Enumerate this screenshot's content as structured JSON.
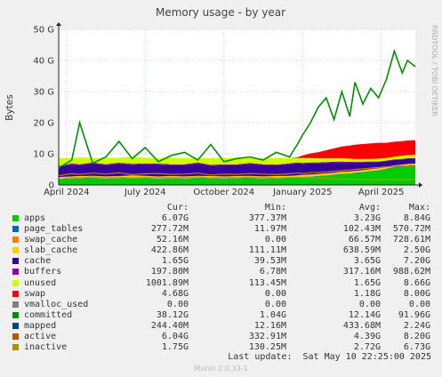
{
  "chart_data": {
    "type": "area",
    "title": "Memory usage - by year",
    "ylabel": "Bytes",
    "side_label": "RRDTOOL / TOBI OETIKER",
    "ylim": [
      0,
      50
    ],
    "y_unit": "G",
    "y_ticks": [
      {
        "v": 0,
        "label": "0"
      },
      {
        "v": 10,
        "label": "10 G"
      },
      {
        "v": 20,
        "label": "20 G"
      },
      {
        "v": 30,
        "label": "30 G"
      },
      {
        "v": 40,
        "label": "40 G"
      },
      {
        "v": 50,
        "label": "50 G"
      }
    ],
    "x_ticks": [
      {
        "t": 0,
        "label": "April 2024"
      },
      {
        "t": 3,
        "label": "July 2024"
      },
      {
        "t": 6,
        "label": "October 2024"
      },
      {
        "t": 9,
        "label": "January 2025"
      },
      {
        "t": 12,
        "label": "April 2025"
      }
    ],
    "xlim": [
      -0.3,
      13.3
    ],
    "grid": true,
    "x": [
      -0.3,
      0.2,
      0.5,
      1.0,
      1.5,
      2.0,
      2.5,
      3.0,
      3.5,
      4.0,
      4.5,
      5.0,
      5.5,
      6.0,
      6.5,
      7.0,
      7.5,
      8.0,
      8.5,
      8.8,
      9.0,
      9.3,
      9.6,
      9.9,
      10.2,
      10.5,
      10.8,
      11.0,
      11.3,
      11.6,
      11.9,
      12.2,
      12.5,
      12.8,
      13.0,
      13.3
    ],
    "stack": [
      {
        "name": "apps",
        "color": "#00cc00",
        "values": [
          1.8,
          2.0,
          2.1,
          2.2,
          2.0,
          2.1,
          2.3,
          2.2,
          2.0,
          2.1,
          2.0,
          2.2,
          2.1,
          2.0,
          2.1,
          2.2,
          2.0,
          2.1,
          2.2,
          2.3,
          2.5,
          2.6,
          2.8,
          3.0,
          3.2,
          3.5,
          3.6,
          3.8,
          4.0,
          4.3,
          4.5,
          5.0,
          5.5,
          5.8,
          6.0,
          6.1
        ]
      },
      {
        "name": "page_tables",
        "color": "#0066b3",
        "values": [
          0.1,
          0.1,
          0.1,
          0.1,
          0.1,
          0.1,
          0.1,
          0.1,
          0.1,
          0.1,
          0.1,
          0.1,
          0.1,
          0.1,
          0.1,
          0.1,
          0.1,
          0.1,
          0.1,
          0.1,
          0.1,
          0.1,
          0.1,
          0.1,
          0.1,
          0.1,
          0.1,
          0.1,
          0.15,
          0.15,
          0.2,
          0.2,
          0.25,
          0.25,
          0.27,
          0.28
        ]
      },
      {
        "name": "swap_cache",
        "color": "#ff8000",
        "values": [
          0.05,
          0.05,
          0.05,
          0.05,
          0.05,
          0.05,
          0.05,
          0.05,
          0.05,
          0.05,
          0.05,
          0.05,
          0.05,
          0.05,
          0.05,
          0.05,
          0.05,
          0.05,
          0.05,
          0.05,
          0.05,
          0.05,
          0.05,
          0.05,
          0.05,
          0.05,
          0.05,
          0.05,
          0.05,
          0.05,
          0.05,
          0.05,
          0.05,
          0.05,
          0.05,
          0.05
        ]
      },
      {
        "name": "slab_cache",
        "color": "#ffcc00",
        "values": [
          0.6,
          0.6,
          0.6,
          0.6,
          0.6,
          0.6,
          0.6,
          0.6,
          0.6,
          0.6,
          0.6,
          0.6,
          0.6,
          0.6,
          0.6,
          0.6,
          0.6,
          0.6,
          0.6,
          0.6,
          0.6,
          0.6,
          0.6,
          0.6,
          0.6,
          0.6,
          0.6,
          0.6,
          0.6,
          0.6,
          0.6,
          0.6,
          0.5,
          0.45,
          0.43,
          0.42
        ]
      },
      {
        "name": "cache",
        "color": "#330099",
        "values": [
          3.2,
          3.8,
          3.5,
          3.9,
          3.6,
          4.0,
          3.4,
          3.7,
          3.8,
          3.5,
          3.6,
          3.9,
          3.3,
          3.6,
          3.5,
          3.8,
          3.6,
          3.4,
          3.7,
          3.9,
          3.5,
          3.6,
          3.4,
          3.3,
          3.2,
          3.0,
          2.8,
          2.6,
          2.4,
          2.2,
          2.0,
          1.8,
          1.7,
          1.6,
          1.65,
          1.65
        ]
      },
      {
        "name": "buffers",
        "color": "#990099",
        "values": [
          0.3,
          0.35,
          0.3,
          0.35,
          0.3,
          0.3,
          0.35,
          0.3,
          0.3,
          0.3,
          0.3,
          0.35,
          0.3,
          0.3,
          0.3,
          0.35,
          0.3,
          0.3,
          0.3,
          0.3,
          0.3,
          0.3,
          0.3,
          0.3,
          0.3,
          0.3,
          0.3,
          0.25,
          0.25,
          0.25,
          0.2,
          0.2,
          0.2,
          0.2,
          0.2,
          0.2
        ]
      },
      {
        "name": "unused",
        "color": "#ccff00",
        "values": [
          2.5,
          1.8,
          2.2,
          1.5,
          2.0,
          1.6,
          2.3,
          1.8,
          1.7,
          2.1,
          2.0,
          1.4,
          2.2,
          2.0,
          2.1,
          1.5,
          1.9,
          2.2,
          1.7,
          1.4,
          1.6,
          1.4,
          1.3,
          1.2,
          1.1,
          1.0,
          1.0,
          0.9,
          0.9,
          0.8,
          0.9,
          0.8,
          0.9,
          1.0,
          1.0,
          1.0
        ]
      },
      {
        "name": "swap",
        "color": "#ff0000",
        "values": [
          0.0,
          0.0,
          0.0,
          0.0,
          0.0,
          0.0,
          0.0,
          0.0,
          0.0,
          0.0,
          0.0,
          0.0,
          0.0,
          0.0,
          0.0,
          0.0,
          0.0,
          0.0,
          0.0,
          0.2,
          0.8,
          1.5,
          2.0,
          2.6,
          3.2,
          3.8,
          4.2,
          4.6,
          4.8,
          5.0,
          5.1,
          4.9,
          4.8,
          4.7,
          4.7,
          4.7
        ]
      }
    ],
    "lines": [
      {
        "name": "committed",
        "color": "#008f00",
        "width": 1.6,
        "values": [
          5.5,
          8.0,
          20.0,
          7.0,
          9.0,
          14.0,
          8.5,
          12.0,
          7.5,
          9.5,
          10.5,
          8.0,
          13.0,
          7.5,
          8.5,
          9.0,
          8.0,
          10.5,
          9.0,
          13.0,
          16.0,
          20.0,
          25.0,
          28.0,
          21.0,
          30.0,
          22.0,
          33.0,
          26.0,
          31.0,
          28.0,
          34.0,
          43.0,
          36.0,
          40.0,
          38.0
        ]
      },
      {
        "name": "active",
        "color": "#cc7a00",
        "width": 1.2,
        "values": [
          3.0,
          3.6,
          3.4,
          3.8,
          3.5,
          3.9,
          3.3,
          3.6,
          3.7,
          3.4,
          3.5,
          3.8,
          3.2,
          3.5,
          3.4,
          3.7,
          3.5,
          3.3,
          3.6,
          3.8,
          3.7,
          3.9,
          4.0,
          4.2,
          4.4,
          4.6,
          4.8,
          5.0,
          5.2,
          5.4,
          5.6,
          5.8,
          6.0,
          6.1,
          6.0,
          6.0
        ]
      },
      {
        "name": "inactive",
        "color": "#b8a000",
        "width": 1.0,
        "values": [
          1.8,
          2.4,
          2.2,
          2.6,
          2.3,
          2.5,
          2.2,
          2.4,
          2.5,
          2.3,
          2.4,
          2.6,
          2.2,
          2.4,
          2.3,
          2.5,
          2.4,
          2.2,
          2.4,
          2.5,
          2.4,
          2.3,
          2.2,
          2.1,
          2.0,
          1.9,
          1.9,
          1.8,
          1.8,
          1.8,
          1.7,
          1.8,
          1.8,
          1.7,
          1.75,
          1.75
        ]
      }
    ],
    "legend": {
      "headers": {
        "cur": "Cur:",
        "min": "Min:",
        "avg": "Avg:",
        "max": "Max:"
      },
      "rows": [
        {
          "name": "apps",
          "color": "#00cc00",
          "cur": "6.07G",
          "min": "377.37M",
          "avg": "3.23G",
          "max": "8.84G"
        },
        {
          "name": "page_tables",
          "color": "#0066b3",
          "cur": "277.72M",
          "min": "11.97M",
          "avg": "102.43M",
          "max": "570.72M"
        },
        {
          "name": "swap_cache",
          "color": "#ff8000",
          "cur": "52.16M",
          "min": "0.00",
          "avg": "66.57M",
          "max": "728.61M"
        },
        {
          "name": "slab_cache",
          "color": "#ffcc00",
          "cur": "422.86M",
          "min": "111.11M",
          "avg": "638.59M",
          "max": "2.50G"
        },
        {
          "name": "cache",
          "color": "#330099",
          "cur": "1.65G",
          "min": "39.53M",
          "avg": "3.65G",
          "max": "7.20G"
        },
        {
          "name": "buffers",
          "color": "#990099",
          "cur": "197.80M",
          "min": "6.78M",
          "avg": "317.16M",
          "max": "988.62M"
        },
        {
          "name": "unused",
          "color": "#ccff00",
          "cur": "1001.89M",
          "min": "113.45M",
          "avg": "1.65G",
          "max": "8.66G"
        },
        {
          "name": "swap",
          "color": "#ff0000",
          "cur": "4.68G",
          "min": "0.00",
          "avg": "1.18G",
          "max": "8.00G"
        },
        {
          "name": "vmalloc_used",
          "color": "#808080",
          "cur": "0.00",
          "min": "0.00",
          "avg": "0.00",
          "max": "0.00"
        },
        {
          "name": "committed",
          "color": "#008f00",
          "cur": "38.12G",
          "min": "1.04G",
          "avg": "12.14G",
          "max": "91.96G"
        },
        {
          "name": "mapped",
          "color": "#00487d",
          "cur": "244.40M",
          "min": "12.16M",
          "avg": "433.68M",
          "max": "2.24G"
        },
        {
          "name": "active",
          "color": "#b35a00",
          "cur": "6.04G",
          "min": "332.91M",
          "avg": "4.39G",
          "max": "8.20G"
        },
        {
          "name": "inactive",
          "color": "#b38f00",
          "cur": "1.75G",
          "min": "130.25M",
          "avg": "2.72G",
          "max": "6.73G"
        }
      ]
    }
  },
  "footer": {
    "last_update": "Last update:  Sat May 10 22:25:00 2025",
    "munin": "Munin 2.0.33-1"
  }
}
